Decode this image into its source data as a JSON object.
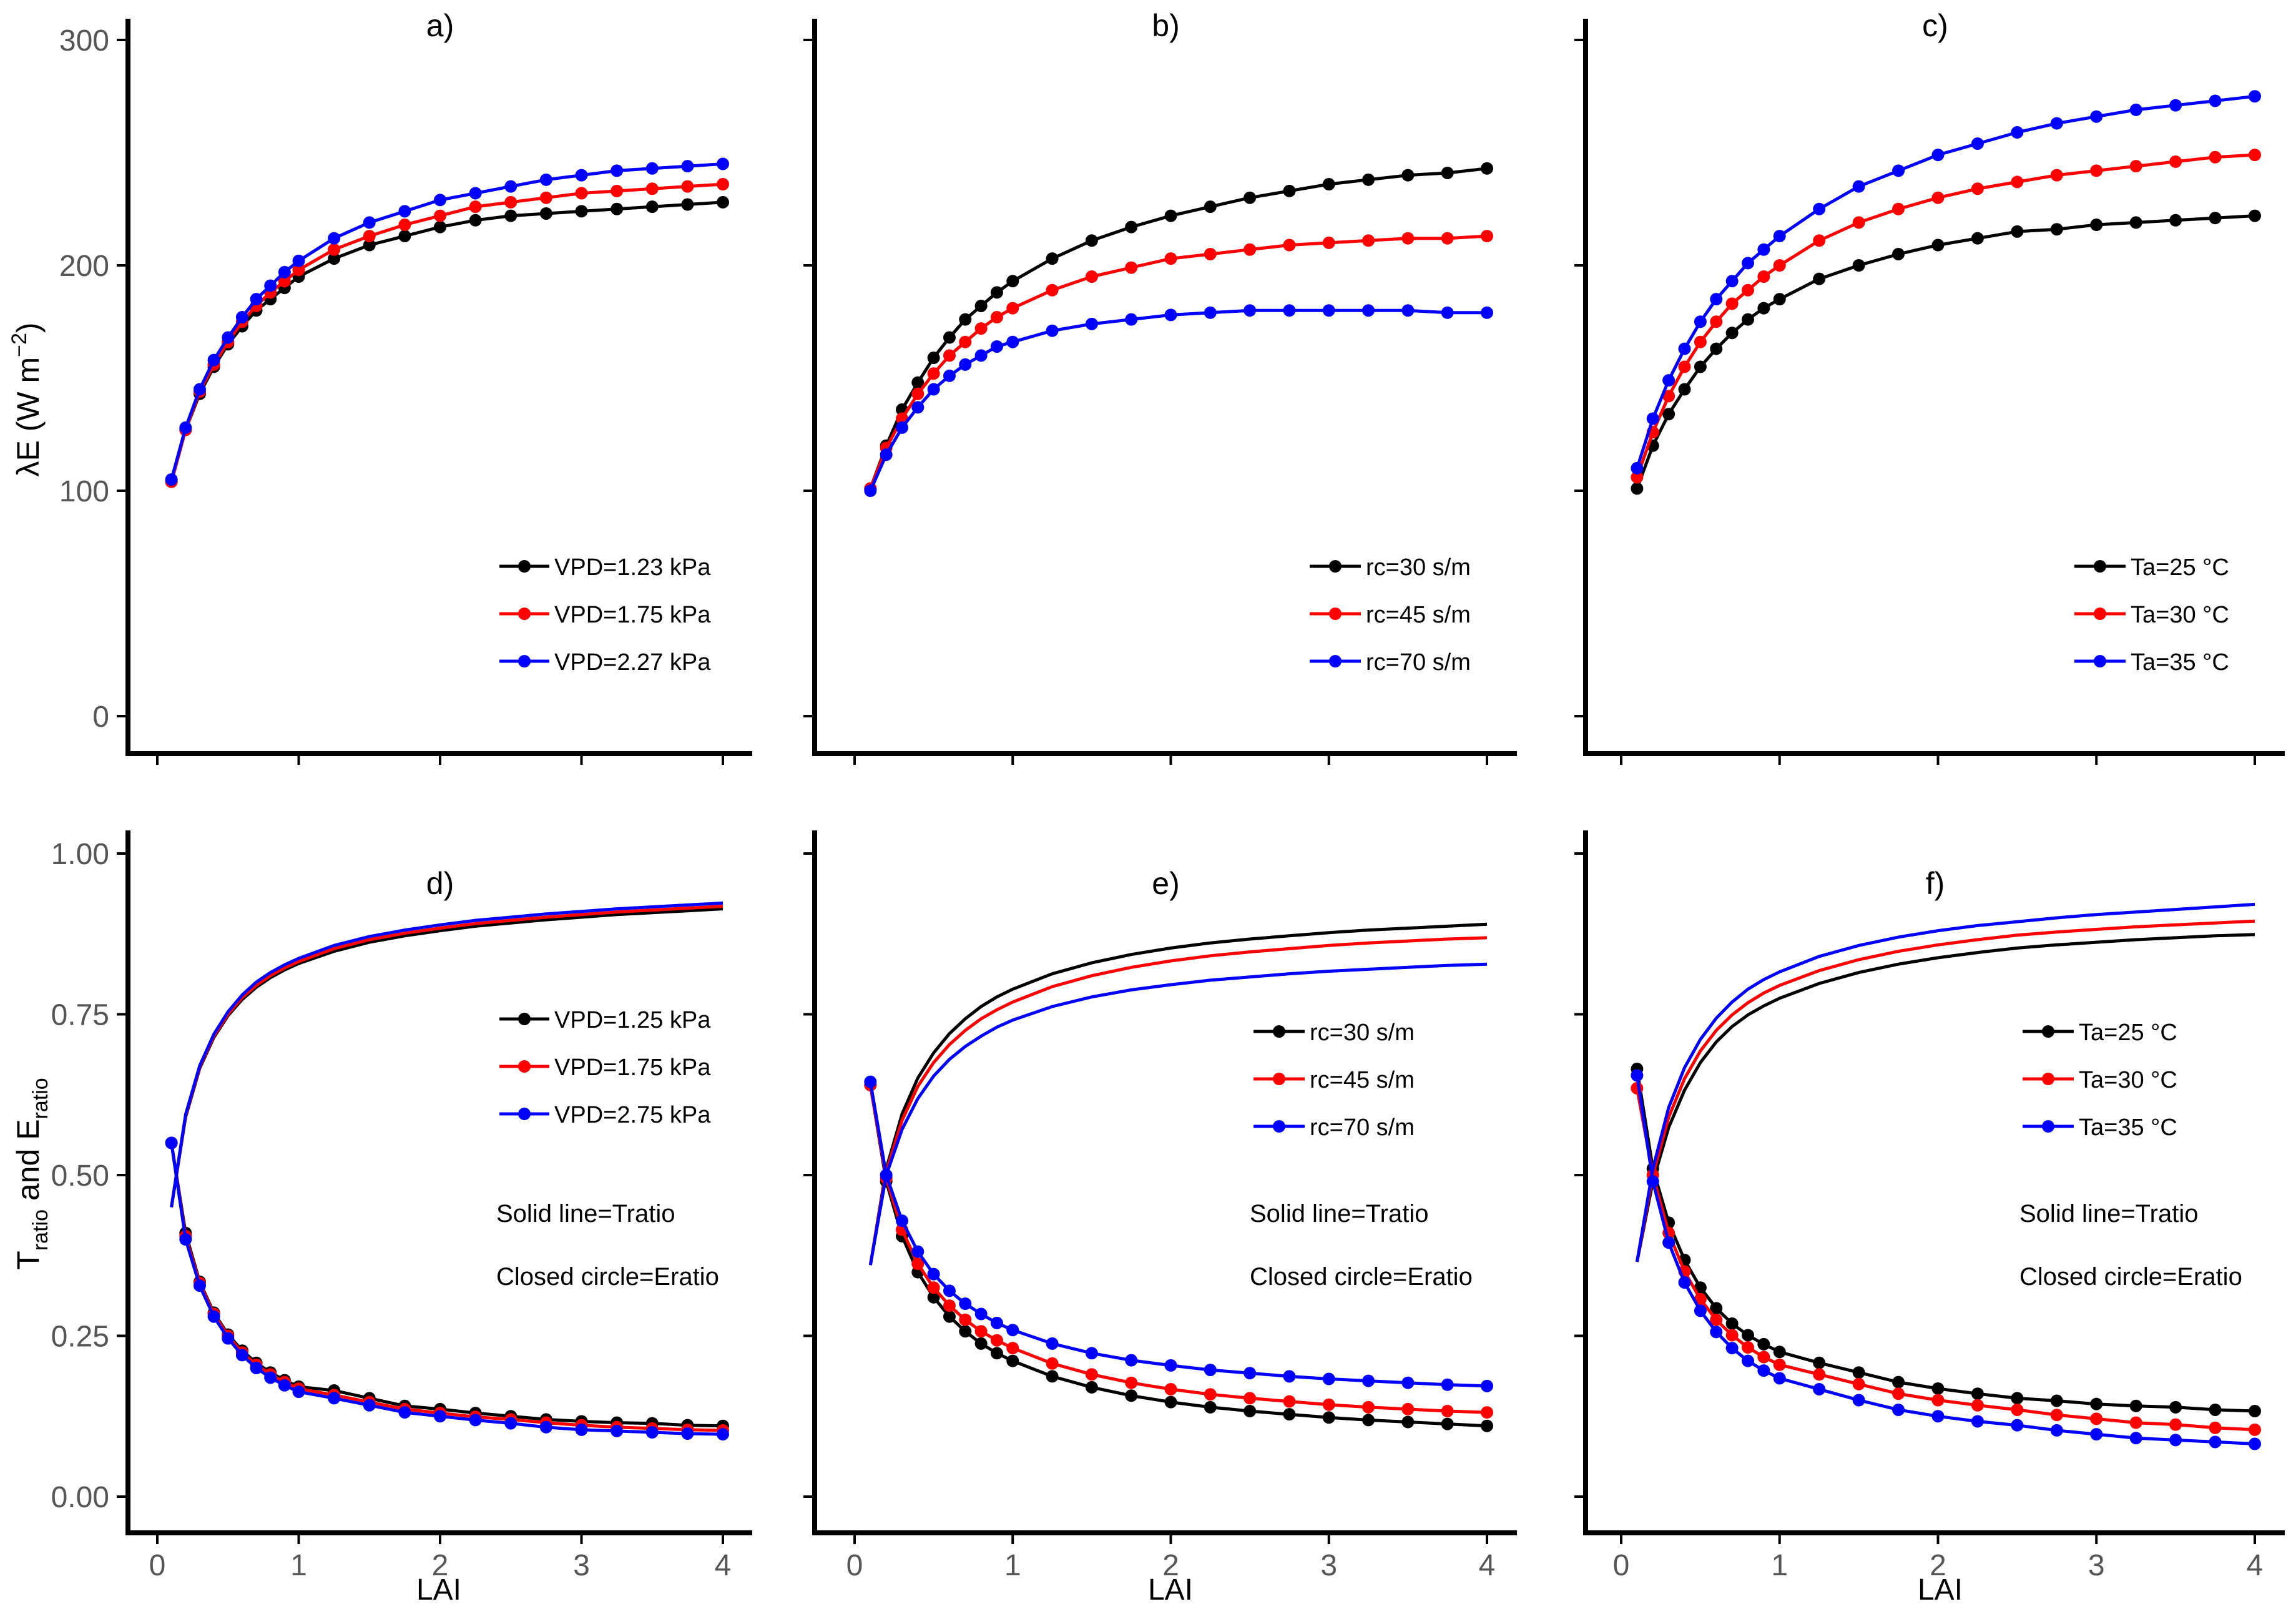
{
  "figure": {
    "ylabel_top": "λE (W m",
    "ylabel_top_sup": "−2",
    "ylabel_top_close": ")",
    "ylabel_bottom_a": "T",
    "ylabel_bottom_a_sub": "ratio",
    "ylabel_bottom_mid": " and E",
    "ylabel_bottom_b_sub": "ratio",
    "xlabel": "LAI"
  },
  "colors": {
    "black": "#000000",
    "red": "#ff0000",
    "blue": "#0000ff"
  },
  "chart_data": [
    {
      "id": "a",
      "type": "line",
      "title": "a)",
      "x": [
        0.1,
        0.2,
        0.3,
        0.4,
        0.5,
        0.6,
        0.7,
        0.8,
        0.9,
        1.0,
        1.25,
        1.5,
        1.75,
        2.0,
        2.25,
        2.5,
        2.75,
        3.0,
        3.25,
        3.5,
        3.75,
        4.0
      ],
      "xlim": [
        -0.2,
        4.2
      ],
      "ylim": [
        -8,
        315
      ],
      "xticks": [
        0,
        1,
        2,
        3,
        4
      ],
      "yticks": [
        0,
        100,
        200,
        300
      ],
      "series": [
        {
          "name": "VPD=1.23 kPa",
          "color": "black",
          "values": [
            104,
            127,
            143,
            155,
            165,
            173,
            180,
            185,
            190,
            195,
            203,
            209,
            213,
            217,
            220,
            222,
            223,
            224,
            225,
            226,
            227,
            228
          ]
        },
        {
          "name": "VPD=1.75 kPa",
          "color": "red",
          "values": [
            104,
            127,
            144,
            156,
            166,
            175,
            182,
            188,
            193,
            198,
            207,
            213,
            218,
            222,
            226,
            228,
            230,
            232,
            233,
            234,
            235,
            236
          ]
        },
        {
          "name": "VPD=2.27 kPa",
          "color": "blue",
          "values": [
            105,
            128,
            145,
            158,
            168,
            177,
            185,
            191,
            197,
            202,
            212,
            219,
            224,
            229,
            232,
            235,
            238,
            240,
            242,
            243,
            244,
            245
          ]
        }
      ],
      "legend": [
        "VPD=1.23 kPa",
        "VPD=1.75 kPa",
        "VPD=2.27 kPa"
      ]
    },
    {
      "id": "b",
      "type": "line",
      "title": "b)",
      "x": [
        0.1,
        0.2,
        0.3,
        0.4,
        0.5,
        0.6,
        0.7,
        0.8,
        0.9,
        1.0,
        1.25,
        1.5,
        1.75,
        2.0,
        2.25,
        2.5,
        2.75,
        3.0,
        3.25,
        3.5,
        3.75,
        4.0
      ],
      "xlim": [
        -0.2,
        4.2
      ],
      "ylim": [
        -8,
        315
      ],
      "xticks": [
        0,
        1,
        2,
        3,
        4
      ],
      "yticks": [
        0,
        100,
        200,
        300
      ],
      "series": [
        {
          "name": "rc=30 s/m",
          "color": "black",
          "values": [
            101,
            120,
            136,
            148,
            159,
            168,
            176,
            182,
            188,
            193,
            203,
            211,
            217,
            222,
            226,
            230,
            233,
            236,
            238,
            240,
            241,
            243
          ]
        },
        {
          "name": "rc=45 s/m",
          "color": "red",
          "values": [
            101,
            119,
            132,
            143,
            152,
            160,
            166,
            172,
            177,
            181,
            189,
            195,
            199,
            203,
            205,
            207,
            209,
            210,
            211,
            212,
            212,
            213
          ]
        },
        {
          "name": "rc=70 s/m",
          "color": "blue",
          "values": [
            100,
            116,
            128,
            137,
            145,
            151,
            156,
            160,
            164,
            166,
            171,
            174,
            176,
            178,
            179,
            180,
            180,
            180,
            180,
            180,
            179,
            179
          ]
        }
      ],
      "legend": [
        "rc=30 s/m",
        "rc=45 s/m",
        "rc=70 s/m"
      ]
    },
    {
      "id": "c",
      "type": "line",
      "title": "c)",
      "x": [
        0.1,
        0.2,
        0.3,
        0.4,
        0.5,
        0.6,
        0.7,
        0.8,
        0.9,
        1.0,
        1.25,
        1.5,
        1.75,
        2.0,
        2.25,
        2.5,
        2.75,
        3.0,
        3.25,
        3.5,
        3.75,
        4.0
      ],
      "xlim": [
        -0.2,
        4.2
      ],
      "ylim": [
        -8,
        315
      ],
      "xticks": [
        0,
        1,
        2,
        3,
        4
      ],
      "yticks": [
        0,
        100,
        200,
        300
      ],
      "series": [
        {
          "name": "Ta=25 °C",
          "color": "black",
          "values": [
            101,
            120,
            134,
            145,
            155,
            163,
            170,
            176,
            181,
            185,
            194,
            200,
            205,
            209,
            212,
            215,
            216,
            218,
            219,
            220,
            221,
            222
          ]
        },
        {
          "name": "Ta=30 °C",
          "color": "red",
          "values": [
            106,
            126,
            142,
            155,
            166,
            175,
            183,
            189,
            195,
            200,
            211,
            219,
            225,
            230,
            234,
            237,
            240,
            242,
            244,
            246,
            248,
            249
          ]
        },
        {
          "name": "Ta=35 °C",
          "color": "blue",
          "values": [
            110,
            132,
            149,
            163,
            175,
            185,
            193,
            201,
            207,
            213,
            225,
            235,
            242,
            249,
            254,
            259,
            263,
            266,
            269,
            271,
            273,
            275
          ]
        }
      ],
      "legend": [
        "Ta=25 °C",
        "Ta=30 °C",
        "Ta=35 °C"
      ]
    },
    {
      "id": "d",
      "type": "line",
      "title": "d)",
      "x": [
        0.1,
        0.2,
        0.3,
        0.4,
        0.5,
        0.6,
        0.7,
        0.8,
        0.9,
        1.0,
        1.25,
        1.5,
        1.75,
        2.0,
        2.25,
        2.5,
        2.75,
        3.0,
        3.25,
        3.5,
        3.75,
        4.0
      ],
      "xlim": [
        -0.2,
        4.2
      ],
      "ylim": [
        -0.03,
        1.03
      ],
      "xticks": [
        0,
        1,
        2,
        3,
        4
      ],
      "yticks": [
        0,
        0.25,
        0.5,
        0.75,
        1.0
      ],
      "ytick_labels": [
        "0.00",
        "0.25",
        "0.50",
        "0.75",
        "1.00"
      ],
      "series": [
        {
          "name": "VPD=1.25 kPa",
          "color": "black",
          "tratio": [
            0.45,
            0.59,
            0.666,
            0.714,
            0.748,
            0.773,
            0.792,
            0.807,
            0.819,
            0.829,
            0.848,
            0.862,
            0.872,
            0.88,
            0.887,
            0.892,
            0.897,
            0.901,
            0.905,
            0.908,
            0.911,
            0.914
          ],
          "eratio": [
            0.55,
            0.41,
            0.334,
            0.286,
            0.252,
            0.227,
            0.208,
            0.193,
            0.181,
            0.171,
            0.165,
            0.153,
            0.141,
            0.136,
            0.13,
            0.125,
            0.12,
            0.117,
            0.115,
            0.114,
            0.111,
            0.11
          ]
        },
        {
          "name": "VPD=1.75 kPa",
          "color": "red",
          "tratio": [
            0.45,
            0.592,
            0.668,
            0.716,
            0.75,
            0.776,
            0.795,
            0.81,
            0.822,
            0.832,
            0.852,
            0.866,
            0.876,
            0.884,
            0.891,
            0.896,
            0.901,
            0.905,
            0.909,
            0.912,
            0.915,
            0.918
          ],
          "eratio": [
            0.55,
            0.405,
            0.332,
            0.284,
            0.25,
            0.224,
            0.205,
            0.19,
            0.178,
            0.168,
            0.158,
            0.147,
            0.136,
            0.13,
            0.124,
            0.12,
            0.115,
            0.111,
            0.108,
            0.106,
            0.104,
            0.103
          ]
        },
        {
          "name": "VPD=2.75 kPa",
          "color": "blue",
          "tratio": [
            0.45,
            0.594,
            0.67,
            0.719,
            0.754,
            0.78,
            0.8,
            0.815,
            0.827,
            0.837,
            0.857,
            0.871,
            0.881,
            0.889,
            0.896,
            0.901,
            0.906,
            0.91,
            0.914,
            0.917,
            0.92,
            0.923
          ],
          "eratio": [
            0.55,
            0.4,
            0.328,
            0.28,
            0.246,
            0.22,
            0.2,
            0.185,
            0.173,
            0.163,
            0.153,
            0.142,
            0.131,
            0.125,
            0.119,
            0.114,
            0.108,
            0.104,
            0.102,
            0.1,
            0.098,
            0.097
          ]
        }
      ],
      "legend": [
        "VPD=1.25 kPa",
        "VPD=1.75 kPa",
        "VPD=2.75 kPa"
      ],
      "notes": [
        "Solid line=Tratio",
        "Closed circle=Eratio"
      ]
    },
    {
      "id": "e",
      "type": "line",
      "title": "e)",
      "x": [
        0.1,
        0.2,
        0.3,
        0.4,
        0.5,
        0.6,
        0.7,
        0.8,
        0.9,
        1.0,
        1.25,
        1.5,
        1.75,
        2.0,
        2.25,
        2.5,
        2.75,
        3.0,
        3.25,
        3.5,
        3.75,
        4.0
      ],
      "xlim": [
        -0.2,
        4.2
      ],
      "ylim": [
        -0.03,
        1.03
      ],
      "xticks": [
        0,
        1,
        2,
        3,
        4
      ],
      "yticks": [
        0,
        0.25,
        0.5,
        0.75,
        1.0
      ],
      "ytick_labels": [
        "0.00",
        "0.25",
        "0.50",
        "0.75",
        "1.00"
      ],
      "series": [
        {
          "name": "rc=30 s/m",
          "color": "black",
          "tratio": [
            0.36,
            0.51,
            0.595,
            0.651,
            0.69,
            0.72,
            0.743,
            0.762,
            0.777,
            0.789,
            0.813,
            0.83,
            0.843,
            0.853,
            0.861,
            0.867,
            0.872,
            0.877,
            0.881,
            0.884,
            0.887,
            0.89
          ],
          "eratio": [
            0.64,
            0.49,
            0.405,
            0.349,
            0.31,
            0.28,
            0.257,
            0.238,
            0.223,
            0.211,
            0.187,
            0.17,
            0.157,
            0.147,
            0.139,
            0.133,
            0.128,
            0.123,
            0.119,
            0.116,
            0.113,
            0.11
          ]
        },
        {
          "name": "rc=45 s/m",
          "color": "red",
          "tratio": [
            0.36,
            0.505,
            0.585,
            0.638,
            0.675,
            0.703,
            0.725,
            0.743,
            0.757,
            0.769,
            0.793,
            0.81,
            0.823,
            0.833,
            0.841,
            0.847,
            0.852,
            0.857,
            0.861,
            0.864,
            0.867,
            0.869
          ],
          "eratio": [
            0.64,
            0.495,
            0.415,
            0.362,
            0.325,
            0.297,
            0.275,
            0.257,
            0.243,
            0.231,
            0.207,
            0.19,
            0.177,
            0.167,
            0.159,
            0.153,
            0.148,
            0.143,
            0.139,
            0.136,
            0.133,
            0.131
          ]
        },
        {
          "name": "rc=70 s/m",
          "color": "blue",
          "tratio": [
            0.36,
            0.5,
            0.571,
            0.619,
            0.654,
            0.68,
            0.7,
            0.716,
            0.73,
            0.741,
            0.762,
            0.777,
            0.788,
            0.796,
            0.803,
            0.808,
            0.813,
            0.817,
            0.82,
            0.823,
            0.826,
            0.828
          ],
          "eratio": [
            0.645,
            0.5,
            0.429,
            0.381,
            0.346,
            0.32,
            0.3,
            0.284,
            0.27,
            0.259,
            0.238,
            0.223,
            0.212,
            0.204,
            0.197,
            0.192,
            0.187,
            0.183,
            0.18,
            0.177,
            0.174,
            0.172
          ]
        }
      ],
      "legend": [
        "rc=30 s/m",
        "rc=45 s/m",
        "rc=70 s/m"
      ],
      "notes": [
        "Solid line=Tratio",
        "Closed circle=Eratio"
      ]
    },
    {
      "id": "f",
      "type": "line",
      "title": "f)",
      "x": [
        0.1,
        0.2,
        0.3,
        0.4,
        0.5,
        0.6,
        0.7,
        0.8,
        0.9,
        1.0,
        1.25,
        1.5,
        1.75,
        2.0,
        2.25,
        2.5,
        2.75,
        3.0,
        3.25,
        3.5,
        3.75,
        4.0
      ],
      "xlim": [
        -0.2,
        4.2
      ],
      "ylim": [
        -0.03,
        1.03
      ],
      "xticks": [
        0,
        1,
        2,
        3,
        4
      ],
      "yticks": [
        0,
        0.25,
        0.5,
        0.75,
        1.0
      ],
      "ytick_labels": [
        "0.00",
        "0.25",
        "0.50",
        "0.75",
        "1.00"
      ],
      "series": [
        {
          "name": "Ta=25 °C",
          "color": "black",
          "tratio": [
            0.365,
            0.49,
            0.574,
            0.632,
            0.675,
            0.707,
            0.731,
            0.749,
            0.763,
            0.775,
            0.798,
            0.815,
            0.828,
            0.838,
            0.846,
            0.853,
            0.858,
            0.862,
            0.866,
            0.869,
            0.872,
            0.874
          ],
          "eratio": [
            0.665,
            0.51,
            0.426,
            0.368,
            0.325,
            0.293,
            0.269,
            0.251,
            0.237,
            0.225,
            0.208,
            0.193,
            0.178,
            0.168,
            0.16,
            0.153,
            0.149,
            0.144,
            0.141,
            0.139,
            0.135,
            0.133
          ]
        },
        {
          "name": "Ta=30 °C",
          "color": "red",
          "tratio": [
            0.365,
            0.5,
            0.59,
            0.65,
            0.693,
            0.725,
            0.749,
            0.768,
            0.783,
            0.795,
            0.818,
            0.835,
            0.848,
            0.858,
            0.866,
            0.873,
            0.878,
            0.882,
            0.886,
            0.889,
            0.892,
            0.895
          ],
          "eratio": [
            0.635,
            0.5,
            0.41,
            0.35,
            0.307,
            0.275,
            0.251,
            0.232,
            0.217,
            0.205,
            0.19,
            0.175,
            0.16,
            0.15,
            0.142,
            0.135,
            0.127,
            0.121,
            0.115,
            0.112,
            0.107,
            0.104
          ]
        },
        {
          "name": "Ta=35 °C",
          "color": "blue",
          "tratio": [
            0.365,
            0.51,
            0.605,
            0.667,
            0.711,
            0.744,
            0.769,
            0.789,
            0.804,
            0.816,
            0.84,
            0.857,
            0.87,
            0.88,
            0.888,
            0.894,
            0.9,
            0.905,
            0.909,
            0.913,
            0.917,
            0.921
          ],
          "eratio": [
            0.655,
            0.49,
            0.395,
            0.333,
            0.289,
            0.256,
            0.231,
            0.211,
            0.196,
            0.184,
            0.167,
            0.15,
            0.135,
            0.125,
            0.117,
            0.111,
            0.103,
            0.097,
            0.091,
            0.088,
            0.085,
            0.082
          ]
        }
      ],
      "legend": [
        "Ta=25 °C",
        "Ta=30 °C",
        "Ta=35 °C"
      ],
      "notes": [
        "Solid line=Tratio",
        "Closed circle=Eratio"
      ]
    }
  ]
}
